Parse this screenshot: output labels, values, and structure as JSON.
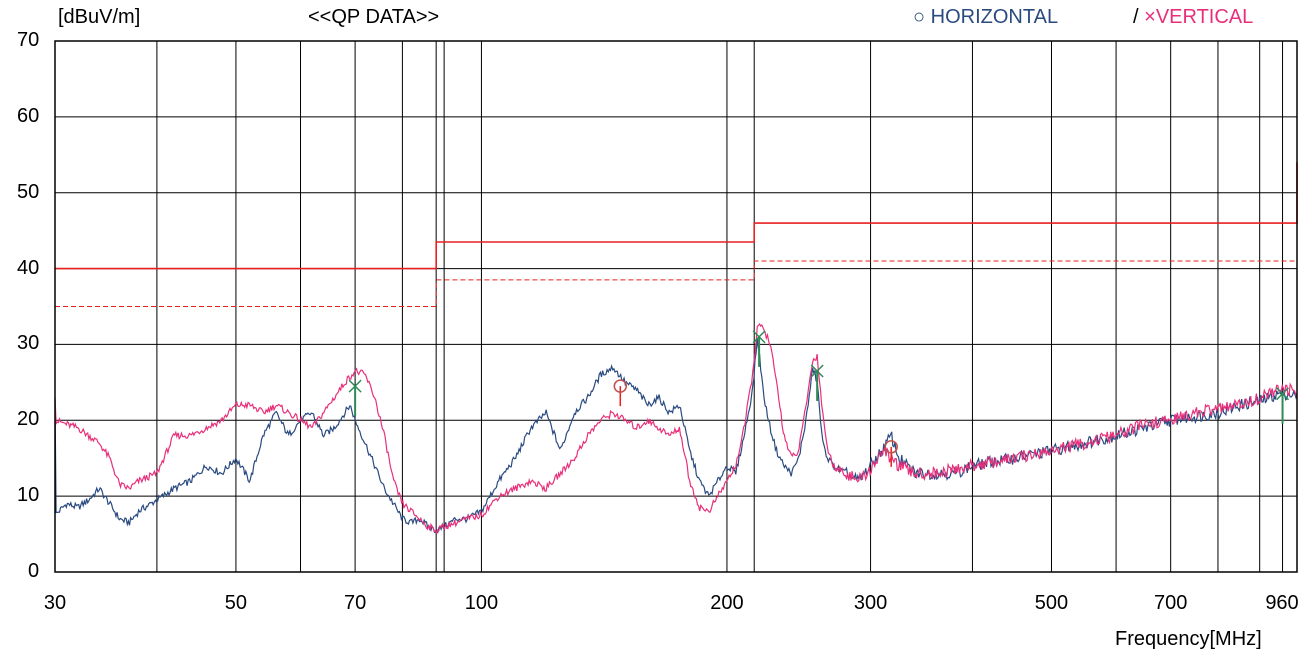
{
  "header": {
    "unit_label": "[dBuV/m]",
    "title": "<<QP DATA>>",
    "legend_h_symbol": "○",
    "legend_h_label": "HORIZONTAL",
    "legend_sep": "/",
    "legend_v_symbol": "×",
    "legend_v_label": "VERTICAL"
  },
  "chart_data": {
    "type": "line",
    "title": "<<QP DATA>>",
    "xlabel": "Frequency[MHz]",
    "ylabel": "[dBuV/m]",
    "x_scale": "log",
    "xlim": [
      30,
      1000
    ],
    "ylim": [
      0,
      70
    ],
    "grid": true,
    "legend_position": "top-right",
    "y_ticks": [
      0,
      10,
      20,
      30,
      40,
      50,
      60,
      70
    ],
    "x_ticks": [
      30,
      50,
      70,
      100,
      200,
      300,
      500,
      700,
      960
    ],
    "x_gridlines": [
      30,
      40,
      50,
      60,
      70,
      80,
      88,
      90,
      100,
      200,
      216,
      300,
      400,
      500,
      600,
      700,
      800,
      900,
      960,
      1000
    ],
    "colors": {
      "horizontal": "#2a4a80",
      "vertical": "#e8307a",
      "limit": "#e82020",
      "marker": "#2e8b57"
    },
    "limits": [
      {
        "name": "limit",
        "style": "solid",
        "points": [
          [
            30,
            40
          ],
          [
            88,
            40
          ],
          [
            88,
            43.5
          ],
          [
            216,
            43.5
          ],
          [
            216,
            46
          ],
          [
            1000,
            46
          ],
          [
            1000,
            54
          ]
        ]
      },
      {
        "name": "margin",
        "style": "dashed",
        "points": [
          [
            30,
            35
          ],
          [
            88,
            35
          ],
          [
            88,
            38.5
          ],
          [
            216,
            38.5
          ],
          [
            216,
            41
          ],
          [
            1000,
            41
          ],
          [
            1000,
            49
          ]
        ]
      }
    ],
    "series": [
      {
        "name": "HORIZONTAL",
        "points": [
          [
            30,
            7.5
          ],
          [
            31,
            9
          ],
          [
            32,
            8.5
          ],
          [
            33,
            9.5
          ],
          [
            34,
            11
          ],
          [
            35,
            9
          ],
          [
            36,
            7
          ],
          [
            37,
            6.5
          ],
          [
            38,
            8
          ],
          [
            40,
            9.5
          ],
          [
            42,
            11
          ],
          [
            44,
            12
          ],
          [
            46,
            14
          ],
          [
            48,
            13
          ],
          [
            50,
            15
          ],
          [
            52,
            12
          ],
          [
            54,
            18
          ],
          [
            56,
            21
          ],
          [
            58,
            18
          ],
          [
            60,
            20
          ],
          [
            62,
            21
          ],
          [
            64,
            18
          ],
          [
            66,
            19
          ],
          [
            68,
            21
          ],
          [
            69,
            22
          ],
          [
            70,
            20
          ],
          [
            72,
            17
          ],
          [
            74,
            14
          ],
          [
            76,
            11
          ],
          [
            78,
            9
          ],
          [
            80,
            7
          ],
          [
            82,
            6.5
          ],
          [
            84,
            7
          ],
          [
            86,
            6
          ],
          [
            88,
            5.5
          ],
          [
            90,
            6
          ],
          [
            93,
            7
          ],
          [
            96,
            7
          ],
          [
            100,
            8
          ],
          [
            105,
            12
          ],
          [
            110,
            15
          ],
          [
            115,
            19
          ],
          [
            120,
            21
          ],
          [
            125,
            16
          ],
          [
            130,
            21
          ],
          [
            135,
            23
          ],
          [
            140,
            26
          ],
          [
            145,
            27
          ],
          [
            150,
            25
          ],
          [
            155,
            24
          ],
          [
            160,
            22
          ],
          [
            165,
            23
          ],
          [
            170,
            21
          ],
          [
            175,
            22
          ],
          [
            180,
            16
          ],
          [
            185,
            12
          ],
          [
            190,
            10
          ],
          [
            195,
            12
          ],
          [
            200,
            14
          ],
          [
            205,
            13
          ],
          [
            210,
            18
          ],
          [
            215,
            24
          ],
          [
            218,
            31
          ],
          [
            222,
            23
          ],
          [
            226,
            19
          ],
          [
            230,
            16
          ],
          [
            235,
            14
          ],
          [
            240,
            13
          ],
          [
            245,
            15
          ],
          [
            250,
            20
          ],
          [
            255,
            27
          ],
          [
            258,
            25
          ],
          [
            262,
            17
          ],
          [
            266,
            15
          ],
          [
            270,
            14
          ],
          [
            280,
            13
          ],
          [
            290,
            12
          ],
          [
            300,
            14
          ],
          [
            310,
            16
          ],
          [
            318,
            18
          ],
          [
            325,
            15
          ],
          [
            340,
            13
          ],
          [
            360,
            13
          ],
          [
            380,
            13
          ],
          [
            400,
            14
          ],
          [
            450,
            15
          ],
          [
            500,
            16
          ],
          [
            550,
            17
          ],
          [
            600,
            18
          ],
          [
            650,
            19
          ],
          [
            700,
            20
          ],
          [
            750,
            20.5
          ],
          [
            800,
            21
          ],
          [
            850,
            22
          ],
          [
            900,
            22.5
          ],
          [
            950,
            23.5
          ],
          [
            980,
            23.5
          ],
          [
            1000,
            23
          ]
        ]
      },
      {
        "name": "VERTICAL",
        "points": [
          [
            30,
            20
          ],
          [
            32,
            19
          ],
          [
            34,
            17
          ],
          [
            35,
            15
          ],
          [
            36,
            11.5
          ],
          [
            37,
            11
          ],
          [
            38,
            12
          ],
          [
            40,
            13
          ],
          [
            42,
            18
          ],
          [
            44,
            18
          ],
          [
            46,
            19
          ],
          [
            48,
            20
          ],
          [
            50,
            22
          ],
          [
            52,
            22
          ],
          [
            54,
            21
          ],
          [
            56,
            22
          ],
          [
            58,
            21
          ],
          [
            60,
            20
          ],
          [
            62,
            19
          ],
          [
            64,
            21
          ],
          [
            66,
            23
          ],
          [
            68,
            25
          ],
          [
            70,
            26.5
          ],
          [
            72,
            26
          ],
          [
            74,
            23
          ],
          [
            76,
            18
          ],
          [
            78,
            12
          ],
          [
            80,
            9
          ],
          [
            82,
            8
          ],
          [
            84,
            7
          ],
          [
            86,
            6
          ],
          [
            88,
            5.5
          ],
          [
            90,
            6
          ],
          [
            93,
            6.5
          ],
          [
            96,
            7
          ],
          [
            100,
            7.5
          ],
          [
            105,
            10
          ],
          [
            110,
            11
          ],
          [
            115,
            12
          ],
          [
            120,
            11
          ],
          [
            125,
            13
          ],
          [
            130,
            15
          ],
          [
            135,
            18
          ],
          [
            140,
            20
          ],
          [
            145,
            21
          ],
          [
            150,
            20
          ],
          [
            155,
            19
          ],
          [
            160,
            20
          ],
          [
            165,
            19
          ],
          [
            170,
            18
          ],
          [
            175,
            19
          ],
          [
            180,
            12
          ],
          [
            185,
            8.5
          ],
          [
            190,
            8
          ],
          [
            195,
            10
          ],
          [
            200,
            12
          ],
          [
            205,
            14
          ],
          [
            210,
            19
          ],
          [
            215,
            26
          ],
          [
            218,
            32.5
          ],
          [
            222,
            32
          ],
          [
            226,
            30
          ],
          [
            230,
            25
          ],
          [
            235,
            18
          ],
          [
            240,
            15
          ],
          [
            245,
            16
          ],
          [
            250,
            22
          ],
          [
            255,
            28
          ],
          [
            258,
            28.5
          ],
          [
            262,
            21
          ],
          [
            266,
            16
          ],
          [
            270,
            14
          ],
          [
            280,
            13
          ],
          [
            290,
            12
          ],
          [
            300,
            13.5
          ],
          [
            310,
            16
          ],
          [
            318,
            15
          ],
          [
            325,
            14
          ],
          [
            340,
            13
          ],
          [
            360,
            13
          ],
          [
            380,
            13.5
          ],
          [
            400,
            14
          ],
          [
            450,
            15
          ],
          [
            500,
            16
          ],
          [
            550,
            17
          ],
          [
            600,
            18
          ],
          [
            650,
            19.5
          ],
          [
            700,
            20
          ],
          [
            750,
            21
          ],
          [
            800,
            21.5
          ],
          [
            850,
            22
          ],
          [
            900,
            23
          ],
          [
            950,
            24
          ],
          [
            980,
            24
          ],
          [
            1000,
            23.5
          ]
        ]
      }
    ],
    "peak_markers": [
      {
        "polarization": "V",
        "symbol": "x",
        "freq": 70,
        "level": 24.5
      },
      {
        "polarization": "H",
        "symbol": "o",
        "freq": 148,
        "level": 24.5
      },
      {
        "polarization": "V",
        "symbol": "x",
        "freq": 219,
        "level": 31
      },
      {
        "polarization": "V",
        "symbol": "x",
        "freq": 258,
        "level": 26.5
      },
      {
        "polarization": "H",
        "symbol": "o",
        "freq": 318,
        "level": 16.5
      },
      {
        "polarization": "V",
        "symbol": "x",
        "freq": 960,
        "level": 23.5
      }
    ]
  }
}
